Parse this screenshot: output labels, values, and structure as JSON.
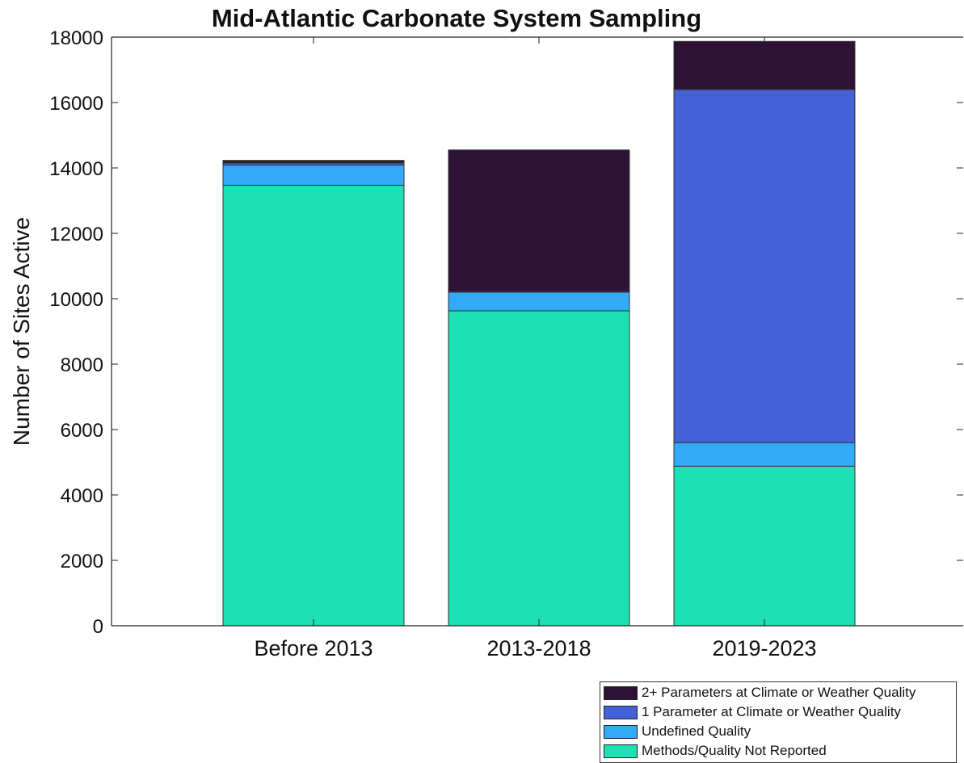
{
  "chart_data": {
    "type": "bar",
    "stacked": true,
    "title": "Mid-Atlantic Carbonate System Sampling",
    "xlabel": "",
    "ylabel": "Number of Sites Active",
    "categories": [
      "Before 2013",
      "2013-2018",
      "2019-2023"
    ],
    "ylim": [
      0,
      18000
    ],
    "yticks": [
      0,
      2000,
      4000,
      6000,
      8000,
      10000,
      12000,
      14000,
      16000,
      18000
    ],
    "grid": false,
    "legend_position": "bottom-right, outside plot",
    "series": [
      {
        "name": "Methods/Quality Not Reported",
        "color": "#1de0b5",
        "values": [
          13470,
          9630,
          4880
        ]
      },
      {
        "name": "Undefined Quality",
        "color": "#33aaf5",
        "values": [
          620,
          570,
          720
        ]
      },
      {
        "name": "1 Parameter at Climate or Weather Quality",
        "color": "#4461d6",
        "values": [
          60,
          20,
          10800
        ]
      },
      {
        "name": "2+ Parameters at Climate or Weather Quality",
        "color": "#2e1235",
        "values": [
          80,
          4330,
          1470
        ]
      }
    ],
    "legend_order": [
      "2+ Parameters at Climate or Weather Quality",
      "1 Parameter at Climate or Weather Quality",
      "Undefined Quality",
      "Methods/Quality Not Reported"
    ]
  }
}
